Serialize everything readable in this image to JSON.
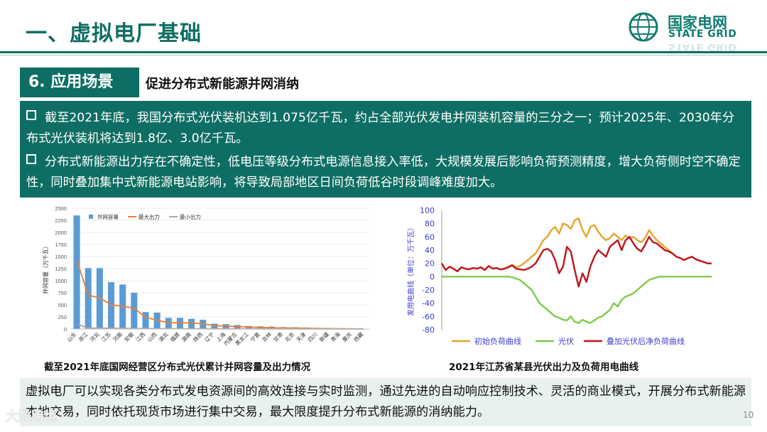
{
  "header": {
    "title": "一、虚拟电厂基础",
    "logo_name": "国家电网",
    "logo_en": "STATE GRID"
  },
  "section": {
    "badge": "6. 应用场景",
    "subtitle": "促进分布式新能源并网消纳"
  },
  "bullets": [
    "截至2021年底，我国分布式光伏装机达到1.075亿千瓦，约占全部光伏发电并网装机容量的三分之一；预计2025年、2030年分布式光伏装机将达到1.8亿、3.0亿千瓦。",
    "分布式新能源出力存在不确定性，低电压等级分布式电源信息接入率低，大规模发展后影响负荷预测精度，增大负荷侧时空不确定性，同时叠加集中式新能源电站影响，将导致局部地区日间负荷低谷时段调峰难度加大。"
  ],
  "captions": {
    "left": "截至2021年底国网经营区分布式光伏累计并网容量及出力情况",
    "right": "2021年江苏省某县光伏出力及负荷用电曲线"
  },
  "bottom_text": "虚拟电厂可以实现各类分布式发电资源间的高效连接与实时监测，通过先进的自动响应控制技术、灵活的商业模式，开展分布式新能源本地交易，同时依托现货市场进行集中交易，最大限度提升分布式新能源的消纳能力。",
  "page_number": "10",
  "watermark": "大数跨境",
  "chart_data": [
    {
      "type": "bar",
      "ylabel": "并网容量（万千瓦）",
      "ylim": [
        0,
        2500
      ],
      "yticks": [
        0,
        250,
        500,
        750,
        1000,
        1250,
        1500,
        1750,
        2000,
        2250,
        2500
      ],
      "legend_position": "top",
      "categories": [
        "山东",
        "浙江",
        "河北",
        "江苏",
        "河南",
        "安徽",
        "江西",
        "山西",
        "湖北",
        "福建",
        "湖南",
        "陕西",
        "辽宁",
        "上海",
        "内蒙古",
        "黑龙江",
        "宁夏",
        "吉林",
        "甘肃",
        "北京",
        "天津",
        "四川",
        "新疆",
        "青海",
        "重庆",
        "西藏"
      ],
      "series": [
        {
          "name": "并网容量",
          "kind": "bar",
          "color": "#5b9bd5",
          "values": [
            2350,
            1260,
            1260,
            970,
            920,
            750,
            350,
            340,
            230,
            230,
            210,
            190,
            110,
            100,
            80,
            60,
            55,
            50,
            40,
            35,
            30,
            20,
            15,
            10,
            8,
            3
          ]
        },
        {
          "name": "最大出力",
          "kind": "line",
          "color": "#ed7d31",
          "values": [
            1420,
            700,
            640,
            500,
            470,
            430,
            240,
            180,
            130,
            130,
            120,
            110,
            70,
            60,
            50,
            40,
            30,
            25,
            20,
            18,
            15,
            10,
            8,
            5,
            4,
            2
          ]
        },
        {
          "name": "最小出力",
          "kind": "line",
          "color": "#a5a5a5",
          "values": [
            100,
            20,
            18,
            15,
            12,
            10,
            8,
            6,
            5,
            5,
            4,
            4,
            3,
            3,
            2,
            2,
            2,
            1,
            1,
            1,
            1,
            1,
            0,
            0,
            0,
            0
          ]
        }
      ]
    },
    {
      "type": "line",
      "ylabel": "发用电曲线（单位：万千瓦）",
      "ylim": [
        -80,
        100
      ],
      "yticks": [
        -80,
        -60,
        -40,
        -20,
        0,
        20,
        40,
        60,
        80,
        100
      ],
      "legend_position": "bottom",
      "series": [
        {
          "name": "初始负荷曲线",
          "color": "#e5a52a",
          "values": [
            20,
            10,
            15,
            12,
            8,
            14,
            12,
            11,
            13,
            12,
            14,
            10,
            16,
            12,
            13,
            11,
            12,
            15,
            18,
            14,
            16,
            20,
            25,
            30,
            35,
            45,
            55,
            60,
            70,
            75,
            65,
            80,
            78,
            72,
            85,
            88,
            70,
            60,
            75,
            78,
            68,
            60,
            55,
            58,
            65,
            60,
            55,
            62,
            58,
            60,
            55,
            52,
            58,
            70,
            62,
            55,
            50,
            45,
            40,
            35,
            30,
            28,
            25,
            28,
            30,
            26,
            24,
            22,
            20,
            20
          ]
        },
        {
          "name": "光伏",
          "color": "#7ccc4a",
          "values": [
            0,
            0,
            0,
            0,
            0,
            0,
            0,
            0,
            0,
            0,
            0,
            0,
            0,
            0,
            0,
            0,
            0,
            0,
            -1,
            -3,
            -5,
            -10,
            -15,
            -20,
            -30,
            -40,
            -45,
            -50,
            -55,
            -60,
            -62,
            -65,
            -66,
            -60,
            -68,
            -70,
            -65,
            -68,
            -70,
            -66,
            -62,
            -60,
            -55,
            -50,
            -40,
            -45,
            -35,
            -30,
            -28,
            -25,
            -20,
            -15,
            -10,
            -5,
            -3,
            -1,
            0,
            0,
            0,
            0,
            0,
            0,
            0,
            0,
            0,
            0,
            0,
            0,
            0,
            0
          ]
        },
        {
          "name": "叠加光伏后净负荷曲线",
          "color": "#c0141c",
          "values": [
            20,
            10,
            15,
            12,
            8,
            14,
            12,
            11,
            13,
            12,
            14,
            10,
            16,
            12,
            13,
            11,
            12,
            14,
            17,
            12,
            11,
            10,
            12,
            15,
            20,
            30,
            40,
            42,
            38,
            25,
            5,
            15,
            45,
            38,
            10,
            -15,
            5,
            -8,
            15,
            30,
            40,
            35,
            30,
            45,
            50,
            55,
            40,
            55,
            60,
            50,
            42,
            38,
            48,
            60,
            52,
            50,
            45,
            40,
            38,
            35,
            30,
            28,
            25,
            28,
            30,
            26,
            24,
            22,
            20,
            20
          ]
        }
      ]
    }
  ]
}
